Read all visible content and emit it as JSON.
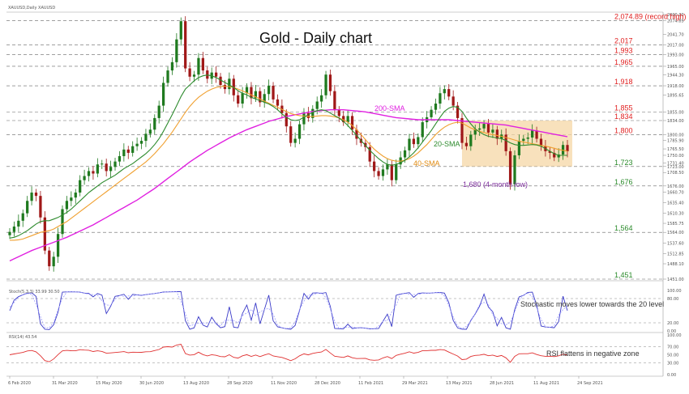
{
  "chart_data": {
    "type": "candlestick",
    "symbol_label": "XAUUSD,Daily  XAUUSD",
    "title": "Gold - Daily chart",
    "y_range": [
      1451,
      2090
    ],
    "colors": {
      "up": "#1f7a1f",
      "down": "#a01818",
      "sma20": "#2e8b2e",
      "sma40": "#f0a030",
      "sma200": "#e020e0",
      "resistance_red": "#e02020",
      "support_green": "#2a8a2a",
      "box": "#f6d7a6",
      "stoch_k": "#3a3ac8",
      "stoch_d": "#9a9aff",
      "rsi": "#e03030"
    },
    "levels": [
      {
        "value": 2074.89,
        "label": "2,074.89 (record high)",
        "color": "red"
      },
      {
        "value": 2017,
        "label": "2,017",
        "color": "red"
      },
      {
        "value": 1993,
        "label": "1,993",
        "color": "red"
      },
      {
        "value": 1965,
        "label": "1,965",
        "color": "red"
      },
      {
        "value": 1918,
        "label": "1,918",
        "color": "red"
      },
      {
        "value": 1855,
        "label": "1,855",
        "color": "red"
      },
      {
        "value": 1834,
        "label": "1,834",
        "color": "red"
      },
      {
        "value": 1800,
        "label": "1,800",
        "color": "red"
      },
      {
        "value": 1723,
        "label": "1,723",
        "color": "green"
      },
      {
        "value": 1676,
        "label": "1,676",
        "color": "green"
      },
      {
        "value": 1564,
        "label": "1,564",
        "color": "green"
      },
      {
        "value": 1451,
        "label": "1,451",
        "color": "green"
      }
    ],
    "right_ticks": [
      "2090.00",
      "2074.89",
      "2041.70",
      "2017.00",
      "1993.00",
      "1965.00",
      "1944.30",
      "1918.00",
      "1895.65",
      "1855.00",
      "1834.00",
      "1800.00",
      "1785.90",
      "1765.50",
      "1750.00",
      "1731.40",
      "1723.00",
      "1708.50",
      "1676.00",
      "1660.70",
      "1635.40",
      "1610.30",
      "1585.75",
      "1564.00",
      "1537.60",
      "1512.85",
      "1488.10",
      "1451.00"
    ],
    "date_labels": [
      "6 Feb 2020",
      "31 Mar 2020",
      "15 May 2020",
      "30 Jun 2020",
      "13 Aug 2020",
      "28 Sep 2020",
      "11 Nov 2020",
      "28 Dec 2020",
      "11 Feb 2021",
      "29 Mar 2021",
      "13 May 2021",
      "28 Jun 2021",
      "11 Aug 2021",
      "24 Sep 2021"
    ],
    "annotations": {
      "sma200": "200-SMA",
      "sma20": "20-SMA",
      "sma40": "40-SMA",
      "low_note": "1,680 (4-month low)"
    },
    "close": [
      1565,
      1578,
      1592,
      1610,
      1640,
      1660,
      1652,
      1600,
      1520,
      1482,
      1505,
      1560,
      1620,
      1640,
      1648,
      1660,
      1690,
      1700,
      1712,
      1706,
      1728,
      1730,
      1712,
      1722,
      1735,
      1748,
      1764,
      1756,
      1772,
      1778,
      1785,
      1802,
      1812,
      1840,
      1870,
      1925,
      1955,
      1975,
      2030,
      2074,
      1960,
      1940,
      1945,
      1985,
      1955,
      1935,
      1950,
      1940,
      1920,
      1910,
      1935,
      1895,
      1875,
      1900,
      1915,
      1888,
      1905,
      1878,
      1898,
      1918,
      1885,
      1870,
      1852,
      1820,
      1780,
      1790,
      1825,
      1852,
      1840,
      1862,
      1880,
      1895,
      1945,
      1905,
      1860,
      1845,
      1830,
      1845,
      1812,
      1790,
      1780,
      1770,
      1735,
      1712,
      1700,
      1716,
      1728,
      1690,
      1728,
      1745,
      1762,
      1790,
      1777,
      1794,
      1830,
      1842,
      1860,
      1875,
      1900,
      1910,
      1892,
      1870,
      1840,
      1780,
      1772,
      1800,
      1812,
      1815,
      1826,
      1805,
      1812,
      1790,
      1800,
      1760,
      1680,
      1750,
      1785,
      1790,
      1793,
      1810,
      1790,
      1772,
      1760,
      1756,
      1745,
      1752,
      1775,
      1760
    ],
    "sma20": [
      1550,
      1552,
      1556,
      1562,
      1568,
      1576,
      1584,
      1590,
      1592,
      1592,
      1596,
      1600,
      1606,
      1612,
      1620,
      1630,
      1640,
      1650,
      1660,
      1668,
      1676,
      1684,
      1690,
      1696,
      1702,
      1710,
      1718,
      1724,
      1730,
      1738,
      1746,
      1754,
      1764,
      1776,
      1790,
      1808,
      1828,
      1848,
      1870,
      1892,
      1910,
      1920,
      1930,
      1938,
      1942,
      1944,
      1942,
      1938,
      1932,
      1926,
      1920,
      1914,
      1906,
      1900,
      1896,
      1890,
      1886,
      1882,
      1878,
      1874,
      1868,
      1860,
      1850,
      1842,
      1836,
      1834,
      1836,
      1842,
      1848,
      1854,
      1858,
      1860,
      1858,
      1852,
      1846,
      1840,
      1832,
      1822,
      1810,
      1798,
      1786,
      1774,
      1762,
      1752,
      1742,
      1734,
      1728,
      1726,
      1728,
      1732,
      1738,
      1746,
      1756,
      1768,
      1782,
      1796,
      1810,
      1826,
      1842,
      1856,
      1864,
      1868,
      1866,
      1856,
      1840,
      1826,
      1814,
      1806,
      1800,
      1796,
      1794,
      1792,
      1790,
      1786,
      1780,
      1776,
      1774,
      1774,
      1775,
      1776,
      1775,
      1772,
      1766,
      1760,
      1754,
      1750,
      1750,
      1750
    ],
    "sma40": [
      1545,
      1545,
      1546,
      1548,
      1552,
      1556,
      1560,
      1564,
      1566,
      1568,
      1572,
      1578,
      1584,
      1590,
      1598,
      1606,
      1614,
      1622,
      1630,
      1638,
      1646,
      1654,
      1662,
      1670,
      1678,
      1686,
      1694,
      1702,
      1710,
      1718,
      1726,
      1734,
      1744,
      1754,
      1766,
      1778,
      1792,
      1806,
      1822,
      1838,
      1854,
      1868,
      1880,
      1890,
      1898,
      1905,
      1910,
      1914,
      1916,
      1917,
      1916,
      1914,
      1910,
      1906,
      1901,
      1896,
      1891,
      1886,
      1881,
      1876,
      1871,
      1866,
      1861,
      1856,
      1851,
      1848,
      1846,
      1845,
      1844,
      1844,
      1845,
      1846,
      1846,
      1845,
      1843,
      1840,
      1836,
      1830,
      1822,
      1812,
      1800,
      1788,
      1776,
      1765,
      1756,
      1748,
      1742,
      1738,
      1736,
      1736,
      1738,
      1742,
      1748,
      1756,
      1766,
      1776,
      1788,
      1800,
      1810,
      1818,
      1824,
      1828,
      1830,
      1828,
      1822,
      1816,
      1812,
      1808,
      1805,
      1802,
      1800,
      1798,
      1796,
      1793,
      1790,
      1787,
      1784,
      1782,
      1780,
      1778,
      1776,
      1774,
      1772,
      1770,
      1767,
      1764,
      1762,
      1760
    ],
    "sma200": [
      1495,
      1500,
      1505,
      1510,
      1515,
      1520,
      1524,
      1528,
      1532,
      1536,
      1540,
      1544,
      1548,
      1552,
      1557,
      1562,
      1567,
      1572,
      1577,
      1582,
      1588,
      1594,
      1600,
      1606,
      1612,
      1618,
      1624,
      1630,
      1636,
      1642,
      1649,
      1656,
      1663,
      1670,
      1678,
      1686,
      1694,
      1702,
      1710,
      1718,
      1726,
      1734,
      1741,
      1748,
      1755,
      1762,
      1768,
      1774,
      1780,
      1786,
      1792,
      1797,
      1802,
      1807,
      1812,
      1816,
      1820,
      1824,
      1828,
      1832,
      1835,
      1838,
      1841,
      1844,
      1846,
      1848,
      1850,
      1852,
      1854,
      1856,
      1857,
      1858,
      1859,
      1860,
      1860,
      1860,
      1860,
      1859,
      1858,
      1857,
      1856,
      1855,
      1853,
      1851,
      1849,
      1847,
      1845,
      1843,
      1841,
      1840,
      1839,
      1838,
      1837,
      1836,
      1836,
      1836,
      1836,
      1836,
      1836,
      1836,
      1836,
      1835,
      1834,
      1833,
      1832,
      1831,
      1830,
      1829,
      1828,
      1827,
      1826,
      1825,
      1824,
      1823,
      1821,
      1819,
      1817,
      1815,
      1813,
      1811,
      1809,
      1807,
      1805,
      1803,
      1801,
      1799,
      1797,
      1795
    ],
    "stochastic": {
      "label": "Stoch(5,3,3) 33.99 30.50",
      "ticks": [
        "100.00",
        "80.00",
        "20.00",
        "0.00"
      ],
      "annotation": "Stochastic moves lower towards the 20 level"
    },
    "rsi": {
      "label": "RSI(14) 43.54",
      "ticks": [
        "100.00",
        "70.00",
        "50.00",
        "30.00",
        "0.00"
      ],
      "annotation": "RSI flattens in negative zone"
    }
  }
}
